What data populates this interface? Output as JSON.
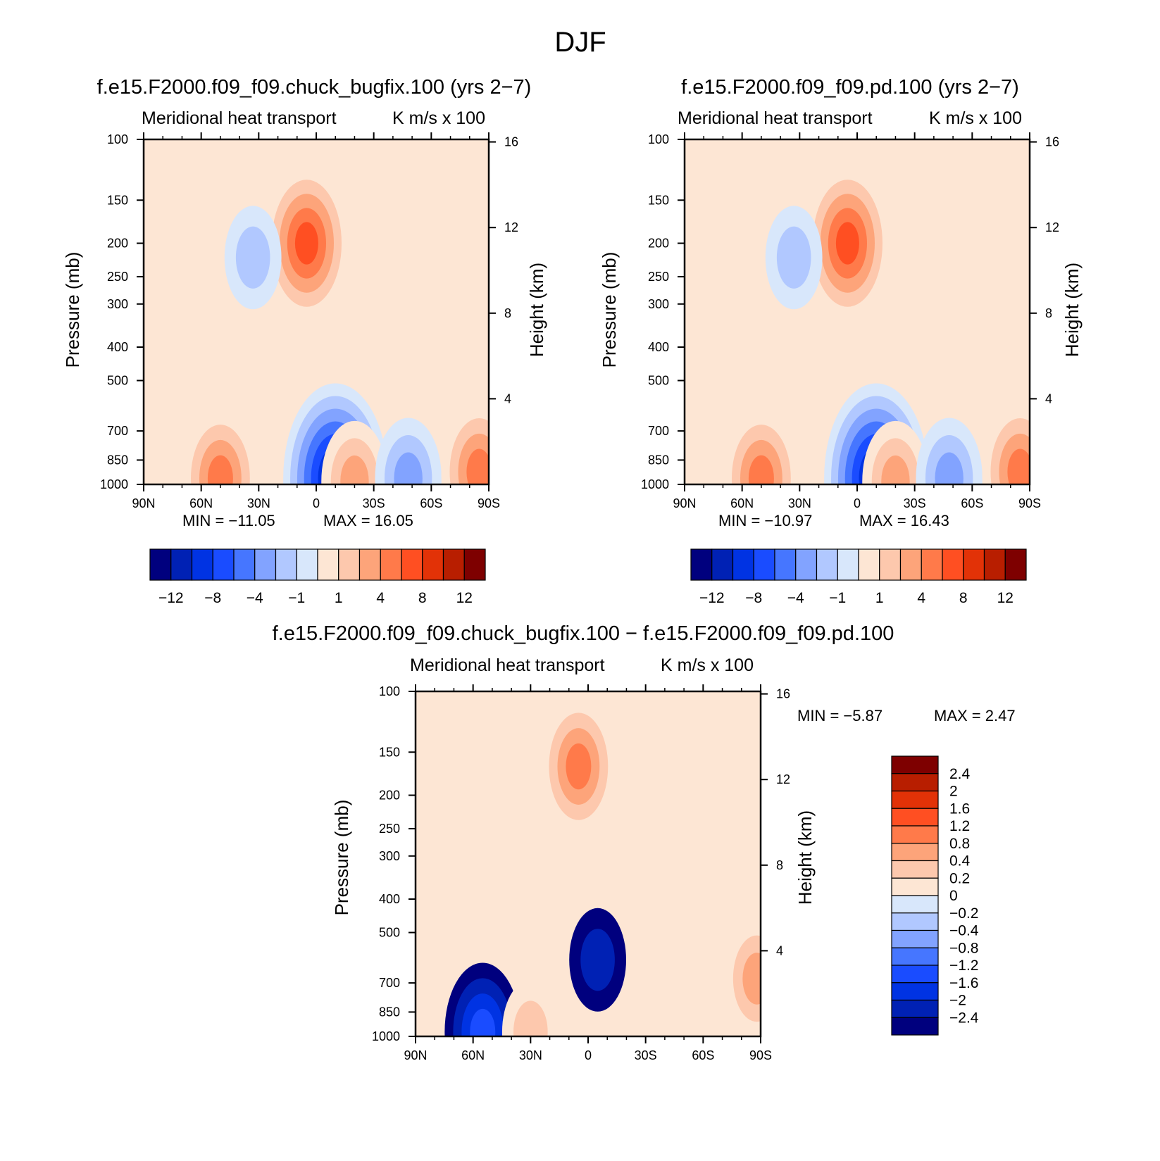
{
  "figure_title": "DJF",
  "chart_data": [
    {
      "type": "contour",
      "id": "panel-1",
      "title": "f.e15.F2000.f09_f09.chuck_bugfix.100 (yrs 2−7)",
      "subtitle_left": "Meridional heat transport",
      "subtitle_right": "K m/s x 100",
      "xlabel": "",
      "ylabel": "Pressure (mb)",
      "y2label": "Height (km)",
      "xticks": [
        "90N",
        "60N",
        "30N",
        "0",
        "30S",
        "60S",
        "90S"
      ],
      "yticks": [
        100,
        150,
        200,
        250,
        300,
        400,
        500,
        700,
        850,
        1000
      ],
      "y2ticks": [
        16,
        12,
        8,
        4
      ],
      "ylim": [
        100,
        1000
      ],
      "min_text": "MIN =  −11.05",
      "max_text": "MAX =   16.05",
      "min": -11.05,
      "max": 16.05,
      "colorbar_labels": [
        "−12",
        "−8",
        "−4",
        "−1",
        "1",
        "4",
        "8",
        "12"
      ],
      "colorbar_colors": [
        "#00007e",
        "#0021b4",
        "#0033e3",
        "#1a4cff",
        "#4676ff",
        "#82a3ff",
        "#b1c8ff",
        "#d8e7fb",
        "#fde6d4",
        "#fdc8ad",
        "#fda47a",
        "#ff7a4a",
        "#ff4f22",
        "#e23207",
        "#b81e00",
        "#7e0000"
      ],
      "features": [
        {
          "kind": "neg",
          "lat": -10,
          "p": 960,
          "level": 7,
          "label": "near-surface minimum ~-11"
        },
        {
          "kind": "pos",
          "lat": 5,
          "p": 200,
          "level": 5,
          "label": "upper tropical maximum ~16"
        },
        {
          "kind": "pos",
          "lat": 50,
          "p": 960,
          "level": 4
        },
        {
          "kind": "pos",
          "lat": -20,
          "p": 980,
          "level": 3
        },
        {
          "kind": "pos",
          "lat": -38,
          "p": 220,
          "level": 1
        },
        {
          "kind": "neg",
          "lat": 33,
          "p": 220,
          "level": 2
        },
        {
          "kind": "neg",
          "lat": -48,
          "p": 960,
          "level": 3
        },
        {
          "kind": "pos",
          "lat": -85,
          "p": 920,
          "level": 4
        }
      ]
    },
    {
      "type": "contour",
      "id": "panel-2",
      "title": "f.e15.F2000.f09_f09.pd.100 (yrs 2−7)",
      "subtitle_left": "Meridional heat transport",
      "subtitle_right": "K m/s x 100",
      "xlabel": "",
      "ylabel": "Pressure (mb)",
      "y2label": "Height (km)",
      "xticks": [
        "90N",
        "60N",
        "30N",
        "0",
        "30S",
        "60S",
        "90S"
      ],
      "yticks": [
        100,
        150,
        200,
        250,
        300,
        400,
        500,
        700,
        850,
        1000
      ],
      "y2ticks": [
        16,
        12,
        8,
        4
      ],
      "ylim": [
        100,
        1000
      ],
      "min_text": "MIN =  −10.97",
      "max_text": "MAX =   16.43",
      "min": -10.97,
      "max": 16.43,
      "colorbar_labels": [
        "−12",
        "−8",
        "−4",
        "−1",
        "1",
        "4",
        "8",
        "12"
      ],
      "colorbar_colors": [
        "#00007e",
        "#0021b4",
        "#0033e3",
        "#1a4cff",
        "#4676ff",
        "#82a3ff",
        "#b1c8ff",
        "#d8e7fb",
        "#fde6d4",
        "#fdc8ad",
        "#fda47a",
        "#ff7a4a",
        "#ff4f22",
        "#e23207",
        "#b81e00",
        "#7e0000"
      ],
      "features": [
        {
          "kind": "neg",
          "lat": -10,
          "p": 960,
          "level": 7
        },
        {
          "kind": "pos",
          "lat": 5,
          "p": 200,
          "level": 5
        },
        {
          "kind": "pos",
          "lat": 50,
          "p": 960,
          "level": 4
        },
        {
          "kind": "pos",
          "lat": -20,
          "p": 980,
          "level": 3
        },
        {
          "kind": "pos",
          "lat": -38,
          "p": 220,
          "level": 1
        },
        {
          "kind": "neg",
          "lat": 33,
          "p": 220,
          "level": 2
        },
        {
          "kind": "neg",
          "lat": -48,
          "p": 960,
          "level": 3
        },
        {
          "kind": "pos",
          "lat": -85,
          "p": 920,
          "level": 4
        }
      ]
    },
    {
      "type": "contour",
      "id": "panel-diff",
      "title": "f.e15.F2000.f09_f09.chuck_bugfix.100 − f.e15.F2000.f09_f09.pd.100",
      "subtitle_left": "Meridional heat transport",
      "subtitle_right": "K m/s x 100",
      "xlabel": "",
      "ylabel": "Pressure (mb)",
      "y2label": "Height (km)",
      "xticks": [
        "90N",
        "60N",
        "30N",
        "0",
        "30S",
        "60S",
        "90S"
      ],
      "yticks": [
        100,
        150,
        200,
        250,
        300,
        400,
        500,
        700,
        850,
        1000
      ],
      "y2ticks": [
        16,
        12,
        8,
        4
      ],
      "ylim": [
        100,
        1000
      ],
      "min_text": "MIN =    −5.87",
      "max_text": "MAX =     2.47",
      "min": -5.87,
      "max": 2.47,
      "colorbar_labels": [
        "2.4",
        "2",
        "1.6",
        "1.2",
        "0.8",
        "0.4",
        "0.2",
        "0",
        "−0.2",
        "−0.4",
        "−0.8",
        "−1.2",
        "−1.6",
        "−2",
        "−2.4"
      ],
      "colorbar_colors": [
        "#7e0000",
        "#b81e00",
        "#e23207",
        "#ff4f22",
        "#ff7a4a",
        "#fda47a",
        "#fdc8ad",
        "#fde6d4",
        "#d8e7fb",
        "#b1c8ff",
        "#82a3ff",
        "#4676ff",
        "#1a4cff",
        "#0033e3",
        "#0021b4",
        "#00007e"
      ],
      "features": [
        {
          "kind": "neg",
          "lat": 55,
          "p": 970,
          "level": 4,
          "label": "near-surface minimum ~-5.9"
        },
        {
          "kind": "pos",
          "lat": 5,
          "p": 165,
          "level": 4,
          "label": "upper maximum ~2.5"
        },
        {
          "kind": "pos",
          "lat": 30,
          "p": 970,
          "level": 2
        },
        {
          "kind": "pos",
          "lat": 45,
          "p": 280,
          "level": 1
        },
        {
          "kind": "neg",
          "lat": -5,
          "p": 600,
          "level": 2
        },
        {
          "kind": "pos",
          "lat": -88,
          "p": 680,
          "level": 3
        }
      ]
    }
  ]
}
